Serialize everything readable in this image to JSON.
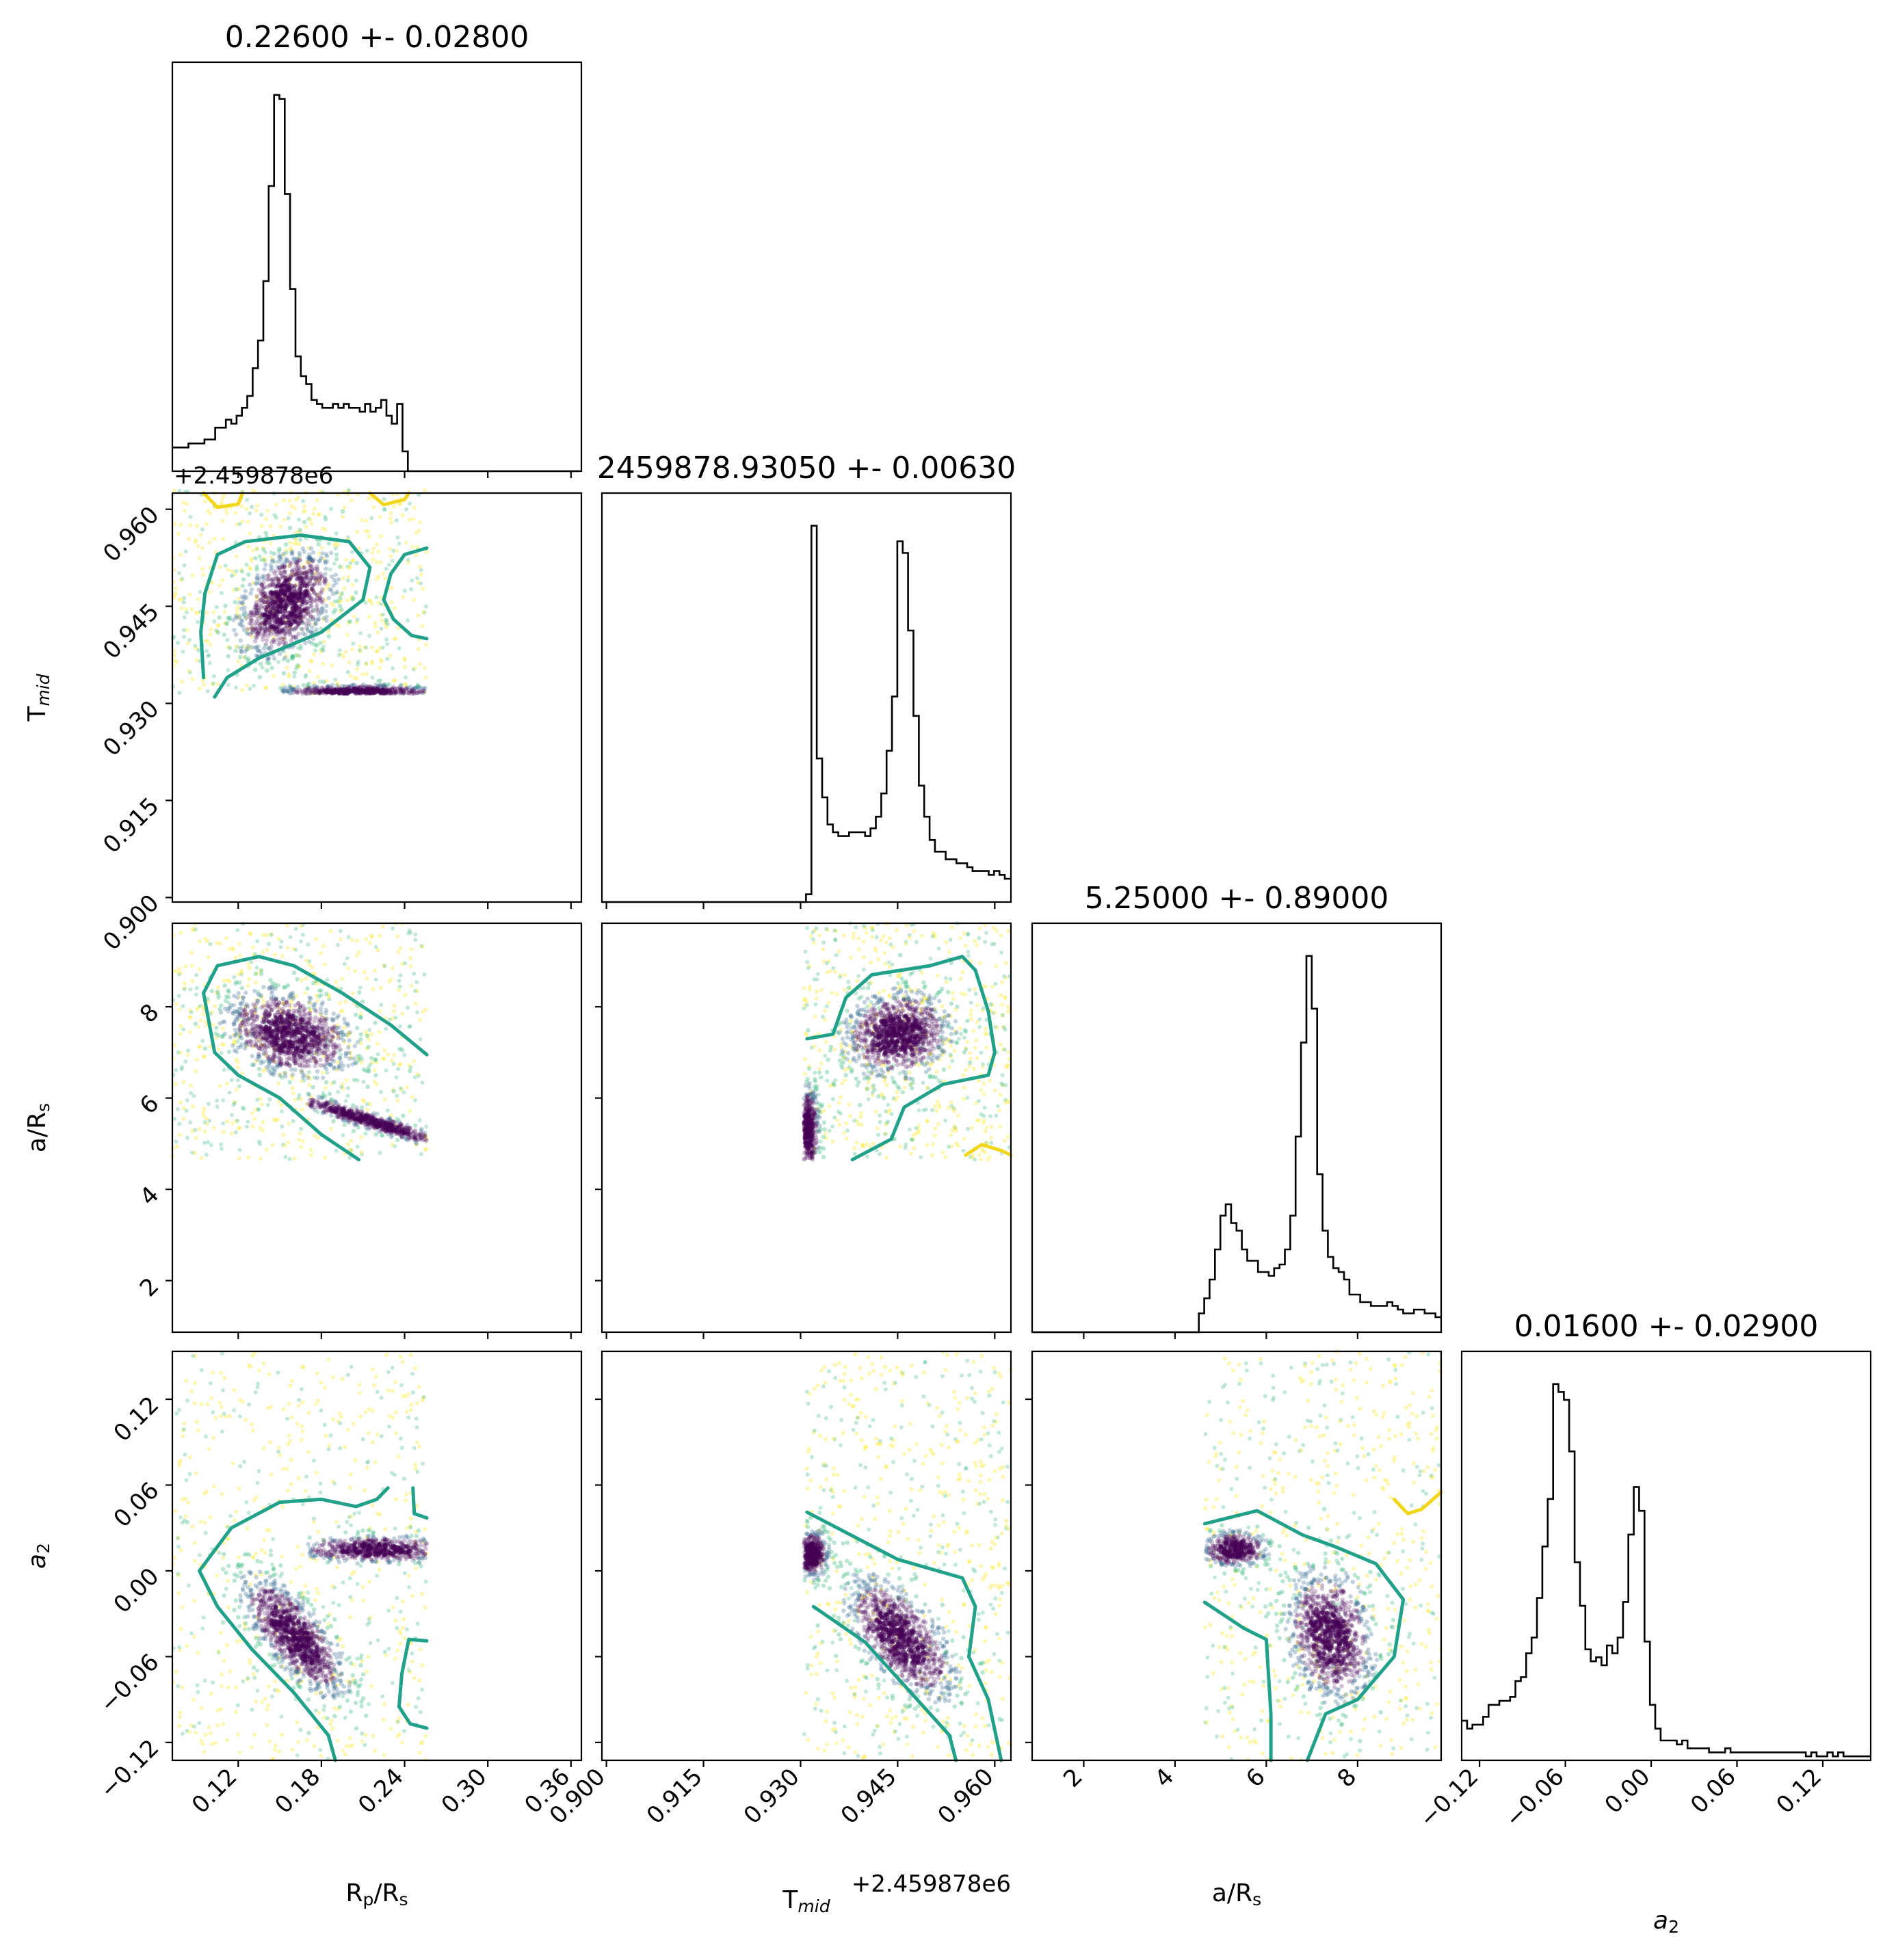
{
  "figure": {
    "type": "corner-plot"
  },
  "chart_data": {
    "type": "corner",
    "parameters": [
      {
        "key": "rprs",
        "label": "R",
        "sub": "p",
        "label2": "/R",
        "sub2": "s",
        "title": "0.22600 +- 0.02800",
        "range": [
          0.0725,
          0.3675
        ],
        "ticks": [
          0.12,
          0.18,
          0.24,
          0.3,
          0.36
        ],
        "tick_labels": [
          "0.12",
          "0.18",
          "0.24",
          "0.30",
          "0.36"
        ]
      },
      {
        "key": "tmid",
        "label": "T",
        "sub": "mid",
        "label2": "",
        "sub2": "",
        "title": "2459878.93050 +- 0.00630",
        "offset_label": "+2.459878e6",
        "range": [
          0.8993,
          0.9625
        ],
        "ticks": [
          0.9,
          0.915,
          0.93,
          0.945,
          0.96
        ],
        "tick_labels": [
          "0.900",
          "0.915",
          "0.930",
          "0.945",
          "0.960"
        ]
      },
      {
        "key": "ars",
        "label": "a/R",
        "sub": "s",
        "label2": "",
        "sub2": "",
        "title": "5.25000 +- 0.89000",
        "range": [
          0.87,
          9.83
        ],
        "ticks": [
          2,
          4,
          6,
          8
        ],
        "tick_labels": [
          "2",
          "4",
          "6",
          "8"
        ]
      },
      {
        "key": "a2",
        "label": "a",
        "sub": "2",
        "label2": "",
        "sub2": "",
        "italic": true,
        "title": "0.01600 +- 0.02900",
        "range": [
          -0.1325,
          0.1535
        ],
        "ticks": [
          -0.12,
          -0.06,
          0.0,
          0.06,
          0.12
        ],
        "tick_labels": [
          "−0.12",
          "−0.06",
          "0.00",
          "0.06",
          "0.12"
        ]
      }
    ],
    "histograms": {
      "rprs": {
        "x_start": 0.0725,
        "bin_width": 0.00386,
        "counts": [
          0.06,
          0.06,
          0.06,
          0.07,
          0.07,
          0.07,
          0.08,
          0.08,
          0.11,
          0.11,
          0.13,
          0.12,
          0.14,
          0.16,
          0.19,
          0.26,
          0.33,
          0.48,
          0.72,
          0.95,
          0.94,
          0.7,
          0.46,
          0.29,
          0.24,
          0.22,
          0.18,
          0.17,
          0.16,
          0.16,
          0.17,
          0.16,
          0.17,
          0.16,
          0.16,
          0.15,
          0.17,
          0.15,
          0.16,
          0.18,
          0.14,
          0.12,
          0.17,
          0.05,
          0,
          0,
          0,
          0,
          0,
          0,
          0,
          0,
          0,
          0,
          0,
          0,
          0,
          0,
          0,
          0,
          0,
          0,
          0,
          0,
          0,
          0,
          0,
          0,
          0,
          0,
          0,
          0,
          0,
          0,
          0,
          0
        ]
      },
      "tmid": {
        "x_start": 0.8993,
        "bin_width": 0.00083,
        "counts": [
          0,
          0,
          0,
          0,
          0,
          0,
          0,
          0,
          0,
          0,
          0,
          0,
          0,
          0,
          0,
          0,
          0,
          0,
          0,
          0,
          0,
          0,
          0,
          0,
          0,
          0,
          0,
          0,
          0,
          0,
          0,
          0,
          0,
          0,
          0,
          0,
          0,
          0,
          0.02,
          0.97,
          0.37,
          0.27,
          0.2,
          0.18,
          0.17,
          0.17,
          0.18,
          0.18,
          0.18,
          0.17,
          0.19,
          0.22,
          0.28,
          0.39,
          0.53,
          0.93,
          0.9,
          0.7,
          0.48,
          0.3,
          0.22,
          0.16,
          0.13,
          0.13,
          0.11,
          0.11,
          0.1,
          0.1,
          0.09,
          0.08,
          0.08,
          0.08,
          0.07,
          0.08,
          0.07,
          0.06
        ]
      },
      "ars": {
        "x_start": 0.87,
        "bin_width": 0.1178,
        "counts": [
          0,
          0,
          0,
          0,
          0,
          0,
          0,
          0,
          0,
          0,
          0,
          0,
          0,
          0,
          0,
          0,
          0,
          0,
          0,
          0,
          0,
          0,
          0,
          0,
          0,
          0,
          0,
          0,
          0,
          0,
          0,
          0.05,
          0.09,
          0.14,
          0.22,
          0.31,
          0.34,
          0.29,
          0.27,
          0.22,
          0.19,
          0.19,
          0.16,
          0.16,
          0.15,
          0.17,
          0.18,
          0.22,
          0.31,
          0.52,
          0.77,
          1.0,
          0.86,
          0.42,
          0.27,
          0.2,
          0.17,
          0.16,
          0.14,
          0.1,
          0.1,
          0.08,
          0.08,
          0.07,
          0.07,
          0.07,
          0.08,
          0.07,
          0.06,
          0.05,
          0.05,
          0.06,
          0.06,
          0.05,
          0.05,
          0.04
        ]
      },
      "a2": {
        "x_start": -0.1325,
        "bin_width": 0.00376,
        "counts": [
          0.1,
          0.08,
          0.09,
          0.09,
          0.11,
          0.14,
          0.14,
          0.15,
          0.15,
          0.16,
          0.2,
          0.21,
          0.27,
          0.31,
          0.41,
          0.54,
          0.66,
          0.95,
          0.93,
          0.91,
          0.78,
          0.5,
          0.39,
          0.28,
          0.25,
          0.26,
          0.24,
          0.29,
          0.27,
          0.31,
          0.4,
          0.57,
          0.69,
          0.63,
          0.3,
          0.14,
          0.08,
          0.05,
          0.05,
          0.05,
          0.04,
          0.05,
          0.03,
          0.03,
          0.03,
          0.03,
          0.02,
          0.02,
          0.02,
          0.03,
          0.02,
          0.02,
          0.02,
          0.02,
          0.02,
          0.02,
          0.02,
          0.02,
          0.02,
          0.02,
          0.02,
          0.02,
          0.02,
          0.02,
          0.01,
          0.02,
          0.01,
          0.01,
          0.02,
          0.01,
          0.02,
          0.01,
          0.01,
          0.01,
          0.01,
          0.01
        ]
      }
    },
    "pairs": [
      {
        "x": "rprs",
        "y": "tmid",
        "data_box": {
          "x": [
            0.0725,
            0.256
          ],
          "y": [
            0.9315,
            0.963
          ]
        },
        "clusters": [
          {
            "cx": 0.155,
            "cy": 0.9455,
            "sx": 0.017,
            "sy": 0.004,
            "rho": 0.4,
            "n": 1100
          },
          {
            "cx": 0.207,
            "cy": 0.9318,
            "sx": 0.028,
            "sy": 0.0005,
            "rho": 0,
            "n": 700,
            "clip_x": [
              0.15,
              0.256
            ]
          }
        ],
        "contours": [
          [
            [
              0.095,
              0.934
            ],
            [
              0.093,
              0.941
            ],
            [
              0.096,
              0.947
            ],
            [
              0.105,
              0.953
            ],
            [
              0.125,
              0.955
            ],
            [
              0.165,
              0.956
            ],
            [
              0.2,
              0.955
            ],
            [
              0.215,
              0.951
            ],
            [
              0.21,
              0.946
            ],
            [
              0.18,
              0.941
            ],
            [
              0.135,
              0.937
            ],
            [
              0.112,
              0.934
            ],
            [
              0.103,
              0.931
            ]
          ],
          [
            [
              0.256,
              0.954
            ],
            [
              0.24,
              0.953
            ],
            [
              0.23,
              0.95
            ],
            [
              0.225,
              0.946
            ],
            [
              0.232,
              0.943
            ],
            [
              0.245,
              0.9405
            ],
            [
              0.256,
              0.94
            ]
          ]
        ],
        "outer_contours": [
          [
            [
              0.095,
              0.9625
            ],
            [
              0.105,
              0.9603
            ],
            [
              0.12,
              0.9608
            ],
            [
              0.123,
              0.9625
            ]
          ],
          [
            [
              0.215,
              0.9625
            ],
            [
              0.225,
              0.9607
            ],
            [
              0.24,
              0.9615
            ],
            [
              0.243,
              0.9625
            ]
          ]
        ]
      },
      {
        "x": "rprs",
        "y": "ars",
        "data_box": {
          "x": [
            0.0725,
            0.256
          ],
          "y": [
            4.65,
            9.83
          ]
        },
        "clusters": [
          {
            "cx": 0.157,
            "cy": 7.4,
            "sx": 0.022,
            "sy": 0.45,
            "rho": -0.3,
            "n": 1100
          },
          {
            "cx": 0.215,
            "cy": 5.5,
            "sx": 0.03,
            "sy": 0.3,
            "rho": -0.95,
            "n": 650,
            "clip_x": [
              0.17,
              0.256
            ]
          }
        ],
        "contours": [
          [
            [
              0.095,
              8.3
            ],
            [
              0.105,
              8.9
            ],
            [
              0.135,
              9.1
            ],
            [
              0.16,
              8.9
            ],
            [
              0.195,
              8.3
            ],
            [
              0.23,
              7.6
            ],
            [
              0.256,
              6.95
            ]
          ],
          [
            [
              0.207,
              4.65
            ],
            [
              0.18,
              5.2
            ],
            [
              0.15,
              6.0
            ],
            [
              0.12,
              6.5
            ],
            [
              0.103,
              7.0
            ],
            [
              0.095,
              8.3
            ]
          ]
        ],
        "outer_contours": []
      },
      {
        "x": "tmid",
        "y": "ars",
        "data_box": {
          "x": [
            0.9305,
            0.9625
          ],
          "y": [
            4.65,
            9.83
          ]
        },
        "clusters": [
          {
            "cx": 0.945,
            "cy": 7.4,
            "sx": 0.004,
            "sy": 0.45,
            "rho": 0.1,
            "n": 1100
          },
          {
            "cx": 0.9312,
            "cy": 5.3,
            "sx": 0.0008,
            "sy": 0.45,
            "rho": 0,
            "n": 500
          }
        ],
        "contours": [
          [
            [
              0.931,
              7.3
            ],
            [
              0.935,
              7.4
            ],
            [
              0.937,
              8.2
            ],
            [
              0.941,
              8.7
            ],
            [
              0.95,
              8.9
            ],
            [
              0.955,
              9.1
            ],
            [
              0.957,
              8.8
            ],
            [
              0.959,
              7.9
            ],
            [
              0.96,
              7.0
            ],
            [
              0.959,
              6.5
            ],
            [
              0.952,
              6.3
            ],
            [
              0.946,
              5.8
            ],
            [
              0.944,
              5.1
            ],
            [
              0.938,
              4.65
            ]
          ]
        ],
        "outer_contours": [
          [
            [
              0.9555,
              4.75
            ],
            [
              0.958,
              4.98
            ],
            [
              0.961,
              4.85
            ],
            [
              0.9625,
              4.75
            ]
          ]
        ]
      },
      {
        "x": "rprs",
        "y": "a2",
        "data_box": {
          "x": [
            0.0725,
            0.256
          ],
          "y": [
            -0.1325,
            0.1535
          ]
        },
        "clusters": [
          {
            "cx": 0.16,
            "cy": -0.045,
            "sx": 0.018,
            "sy": 0.02,
            "rho": -0.75,
            "n": 1100
          },
          {
            "cx": 0.22,
            "cy": 0.015,
            "sx": 0.028,
            "sy": 0.0045,
            "rho": 0,
            "n": 650,
            "clip_x": [
              0.17,
              0.256
            ]
          }
        ],
        "contours": [
          [
            [
              0.19,
              -0.1325
            ],
            [
              0.185,
              -0.115
            ],
            [
              0.16,
              -0.085
            ],
            [
              0.13,
              -0.055
            ],
            [
              0.105,
              -0.025
            ],
            [
              0.092,
              0.0
            ],
            [
              0.115,
              0.03
            ],
            [
              0.15,
              0.048
            ],
            [
              0.18,
              0.05
            ],
            [
              0.205,
              0.045
            ],
            [
              0.22,
              0.05
            ],
            [
              0.228,
              0.058
            ]
          ],
          [
            [
              0.256,
              0.037
            ],
            [
              0.247,
              0.04
            ],
            [
              0.246,
              0.058
            ]
          ],
          [
            [
              0.256,
              -0.049
            ],
            [
              0.243,
              -0.048
            ],
            [
              0.238,
              -0.072
            ],
            [
              0.236,
              -0.095
            ],
            [
              0.244,
              -0.107
            ],
            [
              0.256,
              -0.11
            ]
          ]
        ],
        "outer_contours": []
      },
      {
        "x": "tmid",
        "y": "a2",
        "data_box": {
          "x": [
            0.9305,
            0.9625
          ],
          "y": [
            -0.1325,
            0.1535
          ]
        },
        "clusters": [
          {
            "cx": 0.9455,
            "cy": -0.047,
            "sx": 0.004,
            "sy": 0.02,
            "rho": -0.6,
            "n": 1100
          },
          {
            "cx": 0.9318,
            "cy": 0.012,
            "sx": 0.0012,
            "sy": 0.008,
            "rho": 0,
            "n": 500
          }
        ],
        "contours": [
          [
            [
              0.931,
              0.041
            ],
            [
              0.945,
              0.008
            ],
            [
              0.955,
              -0.005
            ],
            [
              0.957,
              -0.025
            ],
            [
              0.956,
              -0.06
            ],
            [
              0.959,
              -0.09
            ],
            [
              0.961,
              -0.1325
            ]
          ],
          [
            [
              0.932,
              -0.025
            ],
            [
              0.94,
              -0.05
            ],
            [
              0.948,
              -0.09
            ],
            [
              0.953,
              -0.115
            ],
            [
              0.954,
              -0.1325
            ]
          ]
        ],
        "outer_contours": []
      },
      {
        "x": "ars",
        "y": "a2",
        "data_box": {
          "x": [
            4.65,
            9.83
          ],
          "y": [
            -0.1325,
            0.1535
          ]
        },
        "clusters": [
          {
            "cx": 7.4,
            "cy": -0.045,
            "sx": 0.45,
            "sy": 0.022,
            "rho": -0.2,
            "n": 1100
          },
          {
            "cx": 5.3,
            "cy": 0.015,
            "sx": 0.35,
            "sy": 0.006,
            "rho": 0,
            "n": 450
          }
        ],
        "contours": [
          [
            [
              4.65,
              0.033
            ],
            [
              5.8,
              0.042
            ],
            [
              6.8,
              0.025
            ],
            [
              7.5,
              0.017
            ],
            [
              8.4,
              0.005
            ],
            [
              9.0,
              -0.02
            ],
            [
              8.8,
              -0.06
            ],
            [
              8.0,
              -0.09
            ],
            [
              7.3,
              -0.1
            ],
            [
              6.9,
              -0.1325
            ]
          ],
          [
            [
              4.65,
              -0.022
            ],
            [
              5.5,
              -0.04
            ],
            [
              6.0,
              -0.048
            ],
            [
              6.1,
              -0.1
            ],
            [
              6.1,
              -0.1325
            ]
          ]
        ],
        "outer_contours": [
          [
            [
              8.8,
              0.05
            ],
            [
              9.1,
              0.04
            ],
            [
              9.4,
              0.043
            ],
            [
              9.83,
              0.055
            ]
          ]
        ]
      }
    ],
    "colors": {
      "density_dark": "#440154",
      "density_mid": "#31688e",
      "density_green": "#35b779",
      "density_light": "#fde725",
      "contour": "#21a08a",
      "outer_contour": "#f2d61c",
      "hist": "#000000"
    }
  }
}
